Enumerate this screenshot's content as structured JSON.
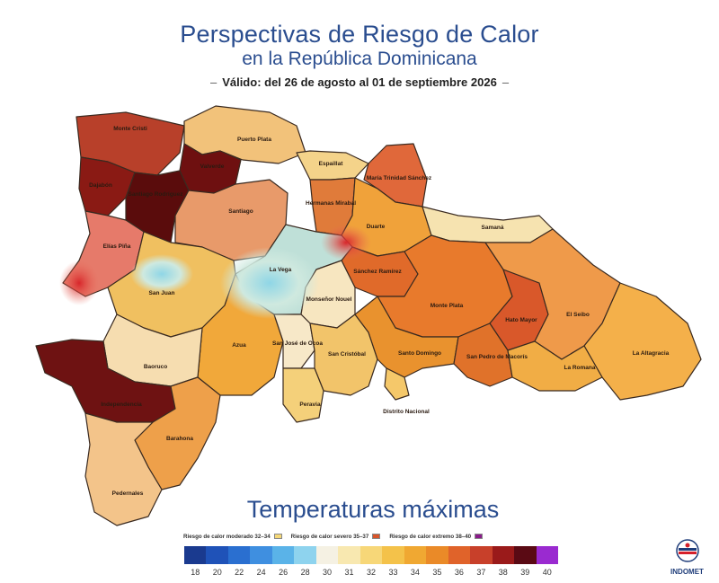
{
  "header": {
    "title": "Perspectivas de Riesgo de Calor",
    "subtitle": "en la República Dominicana",
    "validity": "Válido: del 26 de agosto al 01 de septiembre 2026",
    "dash": "–"
  },
  "map": {
    "provinces": [
      {
        "id": "monte-cristi",
        "label": "Monte Cristi",
        "fill": "#b8402a"
      },
      {
        "id": "puerto-plata",
        "label": "Puerto Plata",
        "fill": "#f2c27a"
      },
      {
        "id": "valverde",
        "label": "Valverde",
        "fill": "#6e1010"
      },
      {
        "id": "dajabon",
        "label": "Dajabón",
        "fill": "#8a1a14"
      },
      {
        "id": "santiago-rodriguez",
        "label": "Santiago Rodríguez",
        "fill": "#5a0c0c"
      },
      {
        "id": "santiago",
        "label": "Santiago",
        "fill": "#e89a6a"
      },
      {
        "id": "espaillat",
        "label": "Espaillat",
        "fill": "#f4d38a"
      },
      {
        "id": "maria-trinidad-sanchez",
        "label": "María Trinidad Sánchez",
        "fill": "#e0683a"
      },
      {
        "id": "hermanas-mirabal",
        "label": "Hermanas Mirabal",
        "fill": "#e07b3a"
      },
      {
        "id": "duarte",
        "label": "Duarte",
        "fill": "#f0a23a"
      },
      {
        "id": "samana",
        "label": "Samaná",
        "fill": "#f6e3b0"
      },
      {
        "id": "elias-pina",
        "label": "Elías Piña",
        "fill": "#e67a6a"
      },
      {
        "id": "la-vega",
        "label": "La Vega",
        "fill": "#bfe0d8"
      },
      {
        "id": "sanchez-ramirez",
        "label": "Sánchez Ramírez",
        "fill": "#e06a2a"
      },
      {
        "id": "san-juan",
        "label": "San Juan",
        "fill": "#f0c060"
      },
      {
        "id": "monsenor-nouel",
        "label": "Monseñor Nouel",
        "fill": "#f7e6c0"
      },
      {
        "id": "monte-plata",
        "label": "Monte Plata",
        "fill": "#e87a2c"
      },
      {
        "id": "hato-mayor",
        "label": "Hato Mayor",
        "fill": "#d9582a"
      },
      {
        "id": "el-seibo",
        "label": "El Seibo",
        "fill": "#ef9a4a"
      },
      {
        "id": "la-altagracia",
        "label": "La Altagracia",
        "fill": "#f4b04a"
      },
      {
        "id": "azua",
        "label": "Azua",
        "fill": "#f1a83a"
      },
      {
        "id": "san-jose-de-ocoa",
        "label": "San José de Ocoa",
        "fill": "#f7e8c8"
      },
      {
        "id": "san-cristobal",
        "label": "San Cristóbal",
        "fill": "#f2c46a"
      },
      {
        "id": "santo-domingo",
        "label": "Santo Domingo",
        "fill": "#e9922e"
      },
      {
        "id": "san-pedro-de-macoris",
        "label": "San Pedro de Macorís",
        "fill": "#e0722a"
      },
      {
        "id": "la-romana",
        "label": "La Romana",
        "fill": "#f1ad45"
      },
      {
        "id": "distrito-nacional",
        "label": "Distrito Nacional",
        "fill": "#f5c86a"
      },
      {
        "id": "peravia",
        "label": "Peravia",
        "fill": "#f4d07a"
      },
      {
        "id": "bahoruco",
        "label": "Baoruco",
        "fill": "#f6ddb0"
      },
      {
        "id": "independencia",
        "label": "Independencia",
        "fill": "#6e1212"
      },
      {
        "id": "barahona",
        "label": "Barahona",
        "fill": "#eea04a"
      },
      {
        "id": "pedernales",
        "label": "Pedernales",
        "fill": "#f3c48a"
      }
    ]
  },
  "legend": {
    "title": "Temperaturas máximas",
    "categories": [
      {
        "label": "Riesgo de calor moderado 32–34",
        "color": "#f5d878"
      },
      {
        "label": "Riesgo de calor severo 35–37",
        "color": "#d9552a"
      },
      {
        "label": "Riesgo de calor extremo 38–40",
        "color": "#8a1a8a"
      }
    ],
    "scale": [
      {
        "value": "18",
        "color": "#1a3a8f"
      },
      {
        "value": "20",
        "color": "#1f52b8"
      },
      {
        "value": "22",
        "color": "#2a6fd0"
      },
      {
        "value": "24",
        "color": "#3f8fe0"
      },
      {
        "value": "26",
        "color": "#5ab3e8"
      },
      {
        "value": "28",
        "color": "#8ed3ee"
      },
      {
        "value": "30",
        "color": "#f5f1e3"
      },
      {
        "value": "31",
        "color": "#f8e8b0"
      },
      {
        "value": "32",
        "color": "#f7d778"
      },
      {
        "value": "33",
        "color": "#f4c24a"
      },
      {
        "value": "34",
        "color": "#f0a832"
      },
      {
        "value": "35",
        "color": "#ea8a28"
      },
      {
        "value": "36",
        "color": "#e0632a"
      },
      {
        "value": "37",
        "color": "#c8402a"
      },
      {
        "value": "38",
        "color": "#9a1a1a"
      },
      {
        "value": "39",
        "color": "#5a0a14"
      },
      {
        "value": "40",
        "color": "#9a2ad0"
      }
    ]
  },
  "logo": {
    "name": "INDOMET",
    "icon": "indomet-logo-icon"
  }
}
